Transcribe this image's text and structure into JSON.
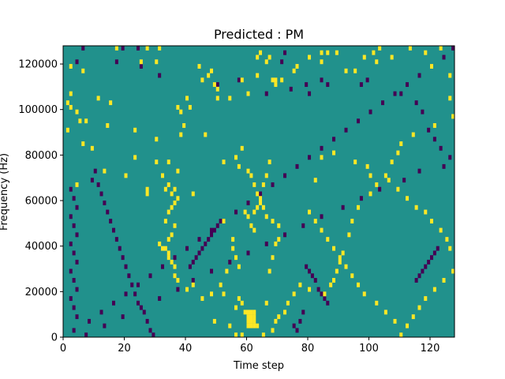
{
  "chart_data": {
    "type": "heatmap",
    "title": "Predicted : PM",
    "xlabel": "Time step",
    "ylabel": "Frequency (Hz)",
    "xlim": [
      0,
      128
    ],
    "ylim": [
      0,
      128000
    ],
    "xticks": [
      0,
      20,
      40,
      60,
      80,
      100,
      120
    ],
    "xtick_labels": [
      "0",
      "20",
      "40",
      "60",
      "80",
      "100",
      "120"
    ],
    "yticks": [
      0,
      20000,
      40000,
      60000,
      80000,
      100000,
      120000
    ],
    "ytick_labels": [
      "0",
      "20000",
      "40000",
      "60000",
      "80000",
      "100000",
      "120000"
    ],
    "n_time_steps": 128,
    "n_freq_bins": 64,
    "freq_bin_width_hz": 2000,
    "cell_values": {
      "background": 0,
      "positive": 1,
      "negative": -1
    },
    "colors": {
      "background": "#21918c",
      "positive": "#fde725",
      "negative": "#440154"
    },
    "positive_cells": [
      [
        5,
        47
      ],
      [
        17,
        63
      ],
      [
        27,
        63
      ],
      [
        31,
        63
      ],
      [
        2,
        59
      ],
      [
        25,
        60
      ],
      [
        30,
        60
      ],
      [
        44,
        59
      ],
      [
        84,
        60
      ],
      [
        102,
        60
      ],
      [
        126,
        52
      ],
      [
        6,
        58
      ],
      [
        54,
        52
      ],
      [
        75,
        58
      ],
      [
        71,
        56
      ],
      [
        68,
        56
      ],
      [
        69,
        55
      ],
      [
        69,
        56
      ],
      [
        60,
        53
      ],
      [
        50,
        52
      ],
      [
        15,
        51
      ],
      [
        11,
        52
      ],
      [
        2,
        53
      ],
      [
        7,
        47
      ],
      [
        1,
        51
      ],
      [
        2,
        50
      ],
      [
        4,
        49
      ],
      [
        41,
        50
      ],
      [
        38,
        49
      ],
      [
        14,
        46
      ],
      [
        23,
        45
      ],
      [
        30,
        43
      ],
      [
        6,
        42
      ],
      [
        9,
        41
      ],
      [
        23,
        39
      ],
      [
        30,
        38
      ],
      [
        13,
        36
      ],
      [
        20,
        35
      ],
      [
        4,
        33
      ],
      [
        42,
        31
      ],
      [
        27,
        31
      ],
      [
        27,
        32
      ],
      [
        34,
        33
      ],
      [
        33,
        32
      ],
      [
        34,
        38
      ],
      [
        1,
        45
      ],
      [
        52,
        38
      ],
      [
        46,
        44
      ],
      [
        56,
        39
      ],
      [
        57,
        37
      ],
      [
        58,
        41
      ],
      [
        60,
        36
      ],
      [
        61,
        35
      ],
      [
        62,
        33
      ],
      [
        63,
        31
      ],
      [
        64,
        29
      ],
      [
        65,
        28
      ],
      [
        66,
        26
      ],
      [
        68,
        25
      ],
      [
        70,
        24
      ],
      [
        59,
        27
      ],
      [
        60,
        26
      ],
      [
        61,
        24
      ],
      [
        62,
        23
      ],
      [
        52,
        25
      ],
      [
        55,
        21
      ],
      [
        55,
        19
      ],
      [
        56,
        17
      ],
      [
        57,
        15
      ],
      [
        53,
        14
      ],
      [
        51,
        11
      ],
      [
        52,
        9
      ],
      [
        57,
        8
      ],
      [
        58,
        7
      ],
      [
        56,
        6
      ],
      [
        59,
        5
      ],
      [
        60,
        5
      ],
      [
        61,
        5
      ],
      [
        62,
        5
      ],
      [
        60,
        4
      ],
      [
        61,
        4
      ],
      [
        62,
        4
      ],
      [
        60,
        3
      ],
      [
        61,
        3
      ],
      [
        62,
        3
      ],
      [
        60,
        2
      ],
      [
        61,
        2
      ],
      [
        62,
        2
      ],
      [
        56,
        0
      ],
      [
        58,
        0
      ],
      [
        54,
        2
      ],
      [
        49,
        3
      ],
      [
        48,
        9
      ],
      [
        45,
        8
      ],
      [
        40,
        10
      ],
      [
        42,
        11
      ],
      [
        37,
        12
      ],
      [
        36,
        13
      ],
      [
        36,
        15
      ],
      [
        35,
        16
      ],
      [
        34,
        17
      ],
      [
        34,
        18
      ],
      [
        33,
        19
      ],
      [
        32,
        19
      ],
      [
        31,
        20
      ],
      [
        34,
        21
      ],
      [
        35,
        22
      ],
      [
        36,
        24
      ],
      [
        33,
        25
      ],
      [
        34,
        27
      ],
      [
        35,
        28
      ],
      [
        36,
        29
      ],
      [
        37,
        30
      ],
      [
        35,
        31
      ],
      [
        36,
        32
      ],
      [
        32,
        35
      ],
      [
        37,
        36
      ],
      [
        38,
        44
      ],
      [
        39,
        46
      ],
      [
        40,
        52
      ],
      [
        37,
        50
      ],
      [
        45,
        56
      ],
      [
        47,
        57
      ],
      [
        48,
        58
      ],
      [
        49,
        55
      ],
      [
        50,
        54
      ],
      [
        58,
        56
      ],
      [
        63,
        57
      ],
      [
        66,
        60
      ],
      [
        67,
        61
      ],
      [
        63,
        61
      ],
      [
        64,
        62
      ],
      [
        76,
        59
      ],
      [
        75,
        64
      ],
      [
        78,
        65
      ],
      [
        80,
        61
      ],
      [
        84,
        62
      ],
      [
        86,
        62
      ],
      [
        89,
        62
      ],
      [
        92,
        58
      ],
      [
        95,
        58
      ],
      [
        98,
        61
      ],
      [
        101,
        62
      ],
      [
        103,
        63
      ],
      [
        107,
        61
      ],
      [
        113,
        63
      ],
      [
        118,
        62
      ],
      [
        120,
        59
      ],
      [
        123,
        63
      ],
      [
        126,
        57
      ],
      [
        127,
        48
      ],
      [
        121,
        46
      ],
      [
        114,
        44
      ],
      [
        110,
        42
      ],
      [
        109,
        40
      ],
      [
        107,
        38
      ],
      [
        105,
        35
      ],
      [
        102,
        33
      ],
      [
        100,
        31
      ],
      [
        96,
        28
      ],
      [
        94,
        25
      ],
      [
        93,
        22
      ],
      [
        91,
        18
      ],
      [
        90,
        16
      ],
      [
        89,
        14
      ],
      [
        88,
        12
      ],
      [
        87,
        11
      ],
      [
        85,
        9
      ],
      [
        80,
        10
      ],
      [
        77,
        11
      ],
      [
        75,
        9
      ],
      [
        73,
        7
      ],
      [
        72,
        5
      ],
      [
        70,
        4
      ],
      [
        69,
        3
      ],
      [
        68,
        1
      ],
      [
        65,
        0
      ],
      [
        63,
        2
      ],
      [
        66,
        7
      ],
      [
        67,
        14
      ],
      [
        68,
        17
      ],
      [
        69,
        20
      ],
      [
        70,
        21
      ],
      [
        62,
        27
      ],
      [
        63,
        28
      ],
      [
        64,
        30
      ],
      [
        65,
        33
      ],
      [
        66,
        35
      ],
      [
        67,
        38
      ],
      [
        80,
        27
      ],
      [
        82,
        34
      ],
      [
        84,
        39
      ],
      [
        88,
        40
      ],
      [
        95,
        38
      ],
      [
        99,
        37
      ],
      [
        100,
        35
      ],
      [
        106,
        34
      ],
      [
        109,
        32
      ],
      [
        112,
        30
      ],
      [
        115,
        28
      ],
      [
        118,
        27
      ],
      [
        120,
        25
      ],
      [
        123,
        23
      ],
      [
        125,
        21
      ],
      [
        126,
        19
      ],
      [
        128,
        17
      ],
      [
        127,
        14
      ],
      [
        124,
        12
      ],
      [
        121,
        10
      ],
      [
        118,
        8
      ],
      [
        116,
        6
      ],
      [
        114,
        4
      ],
      [
        112,
        2
      ],
      [
        110,
        0
      ],
      [
        108,
        3
      ],
      [
        105,
        5
      ],
      [
        102,
        7
      ],
      [
        98,
        9
      ],
      [
        96,
        11
      ],
      [
        94,
        13
      ],
      [
        92,
        15
      ],
      [
        90,
        17
      ],
      [
        88,
        19
      ],
      [
        86,
        21
      ],
      [
        84,
        23
      ],
      [
        82,
        25
      ]
    ],
    "negative_cells": [
      [
        6,
        63
      ],
      [
        19,
        63
      ],
      [
        24,
        63
      ],
      [
        4,
        60
      ],
      [
        17,
        60
      ],
      [
        25,
        59
      ],
      [
        31,
        57
      ],
      [
        50,
        55
      ],
      [
        57,
        56
      ],
      [
        66,
        53
      ],
      [
        71,
        60
      ],
      [
        72,
        62
      ],
      [
        74,
        54
      ],
      [
        79,
        55
      ],
      [
        80,
        53
      ],
      [
        84,
        56
      ],
      [
        86,
        55
      ],
      [
        97,
        55
      ],
      [
        99,
        56
      ],
      [
        110,
        53
      ],
      [
        115,
        51
      ],
      [
        117,
        49
      ],
      [
        119,
        45
      ],
      [
        121,
        43
      ],
      [
        123,
        41
      ],
      [
        126,
        39
      ],
      [
        124,
        37
      ],
      [
        116,
        36
      ],
      [
        111,
        34
      ],
      [
        103,
        32
      ],
      [
        97,
        30
      ],
      [
        91,
        28
      ],
      [
        84,
        26
      ],
      [
        78,
        24
      ],
      [
        72,
        22
      ],
      [
        66,
        20
      ],
      [
        60,
        18
      ],
      [
        54,
        16
      ],
      [
        48,
        14
      ],
      [
        42,
        12
      ],
      [
        37,
        10
      ],
      [
        31,
        8
      ],
      [
        25,
        6
      ],
      [
        19,
        4
      ],
      [
        13,
        2
      ],
      [
        7,
        0
      ],
      [
        3,
        1
      ],
      [
        8,
        3
      ],
      [
        12,
        5
      ],
      [
        16,
        7
      ],
      [
        20,
        9
      ],
      [
        24,
        11
      ],
      [
        28,
        13
      ],
      [
        32,
        15
      ],
      [
        36,
        17
      ],
      [
        40,
        19
      ],
      [
        44,
        21
      ],
      [
        48,
        23
      ],
      [
        52,
        25
      ],
      [
        56,
        27
      ],
      [
        60,
        29
      ],
      [
        64,
        31
      ],
      [
        68,
        33
      ],
      [
        72,
        35
      ],
      [
        76,
        37
      ],
      [
        80,
        39
      ],
      [
        84,
        41
      ],
      [
        88,
        43
      ],
      [
        92,
        45
      ],
      [
        96,
        47
      ],
      [
        100,
        49
      ],
      [
        104,
        51
      ],
      [
        108,
        53
      ],
      [
        112,
        55
      ],
      [
        116,
        57
      ],
      [
        120,
        59
      ],
      [
        124,
        61
      ],
      [
        127,
        63
      ],
      [
        2,
        32
      ],
      [
        3,
        30
      ],
      [
        4,
        28
      ],
      [
        2,
        26
      ],
      [
        3,
        24
      ],
      [
        4,
        22
      ],
      [
        2,
        20
      ],
      [
        3,
        18
      ],
      [
        4,
        16
      ],
      [
        2,
        14
      ],
      [
        3,
        12
      ],
      [
        4,
        10
      ],
      [
        2,
        8
      ],
      [
        3,
        6
      ],
      [
        4,
        4
      ],
      [
        9,
        34
      ],
      [
        10,
        36
      ],
      [
        11,
        33
      ],
      [
        12,
        31
      ],
      [
        13,
        29
      ],
      [
        14,
        27
      ],
      [
        15,
        25
      ],
      [
        16,
        23
      ],
      [
        17,
        21
      ],
      [
        18,
        19
      ],
      [
        19,
        17
      ],
      [
        20,
        15
      ],
      [
        21,
        13
      ],
      [
        22,
        11
      ],
      [
        23,
        9
      ],
      [
        24,
        7
      ],
      [
        26,
        5
      ],
      [
        27,
        3
      ],
      [
        28,
        1
      ],
      [
        29,
        0
      ],
      [
        82,
        12
      ],
      [
        81,
        13
      ],
      [
        80,
        14
      ],
      [
        79,
        15
      ],
      [
        83,
        10
      ],
      [
        84,
        9
      ],
      [
        85,
        8
      ],
      [
        86,
        7
      ],
      [
        78,
        5
      ],
      [
        77,
        3
      ],
      [
        76,
        1
      ],
      [
        75,
        2
      ],
      [
        41,
        15
      ],
      [
        42,
        16
      ],
      [
        43,
        17
      ],
      [
        44,
        18
      ],
      [
        45,
        19
      ],
      [
        46,
        20
      ],
      [
        47,
        21
      ],
      [
        48,
        22
      ],
      [
        49,
        23
      ],
      [
        50,
        24
      ],
      [
        51,
        25
      ],
      [
        115,
        12
      ],
      [
        116,
        13
      ],
      [
        117,
        14
      ],
      [
        118,
        15
      ],
      [
        119,
        16
      ],
      [
        120,
        17
      ],
      [
        121,
        18
      ],
      [
        122,
        19
      ]
    ]
  }
}
